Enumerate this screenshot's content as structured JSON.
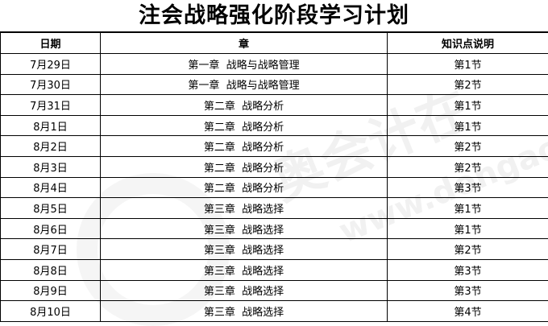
{
  "title": "注会战略强化阶段学习计划",
  "columns": [
    "日期",
    "章",
    "知识点说明"
  ],
  "rows": [
    {
      "date": "7月29日",
      "chapter": "第一章  战略与战略管理",
      "section": "第1节"
    },
    {
      "date": "7月30日",
      "chapter": "第一章  战略与战略管理",
      "section": "第2节"
    },
    {
      "date": "7月31日",
      "chapter": "第二章  战略分析",
      "section": "第1节"
    },
    {
      "date": "8月1日",
      "chapter": "第二章  战略分析",
      "section": "第1节"
    },
    {
      "date": "8月2日",
      "chapter": "第二章  战略分析",
      "section": "第2节"
    },
    {
      "date": "8月3日",
      "chapter": "第二章  战略分析",
      "section": "第2节"
    },
    {
      "date": "8月4日",
      "chapter": "第二章  战略分析",
      "section": "第3节"
    },
    {
      "date": "8月5日",
      "chapter": "第三章  战略选择",
      "section": "第1节"
    },
    {
      "date": "8月6日",
      "chapter": "第三章  战略选择",
      "section": "第1节"
    },
    {
      "date": "8月7日",
      "chapter": "第三章  战略选择",
      "section": "第2节"
    },
    {
      "date": "8月8日",
      "chapter": "第三章  战略选择",
      "section": "第3节"
    },
    {
      "date": "8月9日",
      "chapter": "第三章  战略选择",
      "section": "第3节"
    },
    {
      "date": "8月10日",
      "chapter": "第三章  战略选择",
      "section": "第4节"
    }
  ],
  "watermark": {
    "text": "奥会计在",
    "url": "www.dongao.co"
  }
}
